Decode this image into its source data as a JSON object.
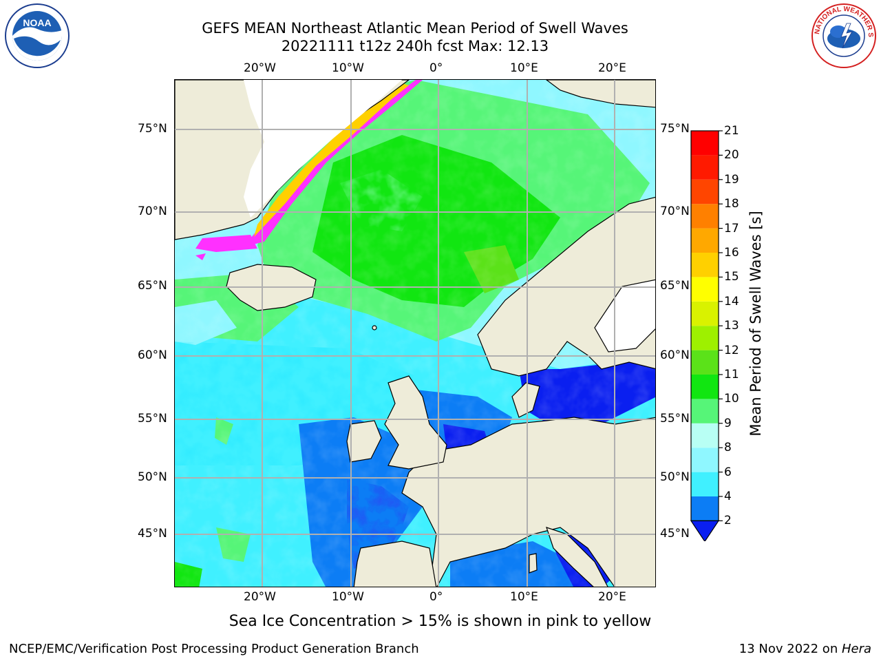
{
  "title": {
    "line1": "GEFS MEAN Northeast Atlantic Mean Period of Swell Waves",
    "line2": "20221111 t12z 240h fcst   Max: 12.13"
  },
  "logos": {
    "left": "NOAA",
    "right": "NATIONAL WEATHER SERVICE"
  },
  "map": {
    "lon_labels_top": [
      "20°W",
      "10°W",
      "0°",
      "10°E",
      "20°E"
    ],
    "lon_labels_bottom": [
      "20°W",
      "10°W",
      "0°",
      "10°E",
      "20°E"
    ],
    "lat_labels_left": [
      "75°N",
      "70°N",
      "65°N",
      "60°N",
      "55°N",
      "50°N",
      "45°N"
    ],
    "lat_labels_right": [
      "75°N",
      "70°N",
      "65°N",
      "60°N",
      "55°N",
      "50°N",
      "45°N"
    ],
    "colors": {
      "land": "#eeecd9",
      "grid": "#b0b0b0"
    }
  },
  "colorbar": {
    "label": "Mean Period of Swell Waves [s]",
    "ticks": [
      "2",
      "4",
      "6",
      "8",
      "9",
      "10",
      "11",
      "12",
      "13",
      "14",
      "15",
      "16",
      "17",
      "18",
      "19",
      "20",
      "21"
    ],
    "colors": [
      "#0a1ff0",
      "#0c7df5",
      "#00e5ff",
      "#40f0ff",
      "#8ff7ff",
      "#b8fff4",
      "#56f578",
      "#11e611",
      "#5be219",
      "#9ef000",
      "#d9f200",
      "#ffff00",
      "#ffd000",
      "#ffa800",
      "#ff8000",
      "#ff4500",
      "#ff1a00",
      "#ff0000"
    ]
  },
  "caption": "Sea Ice Concentration > 15% is shown in pink to yellow",
  "footer": {
    "left": "NCEP/EMC/Verification Post Processing Product Generation Branch",
    "right_prefix": "13 Nov 2022 on ",
    "right_host": "Hera"
  }
}
